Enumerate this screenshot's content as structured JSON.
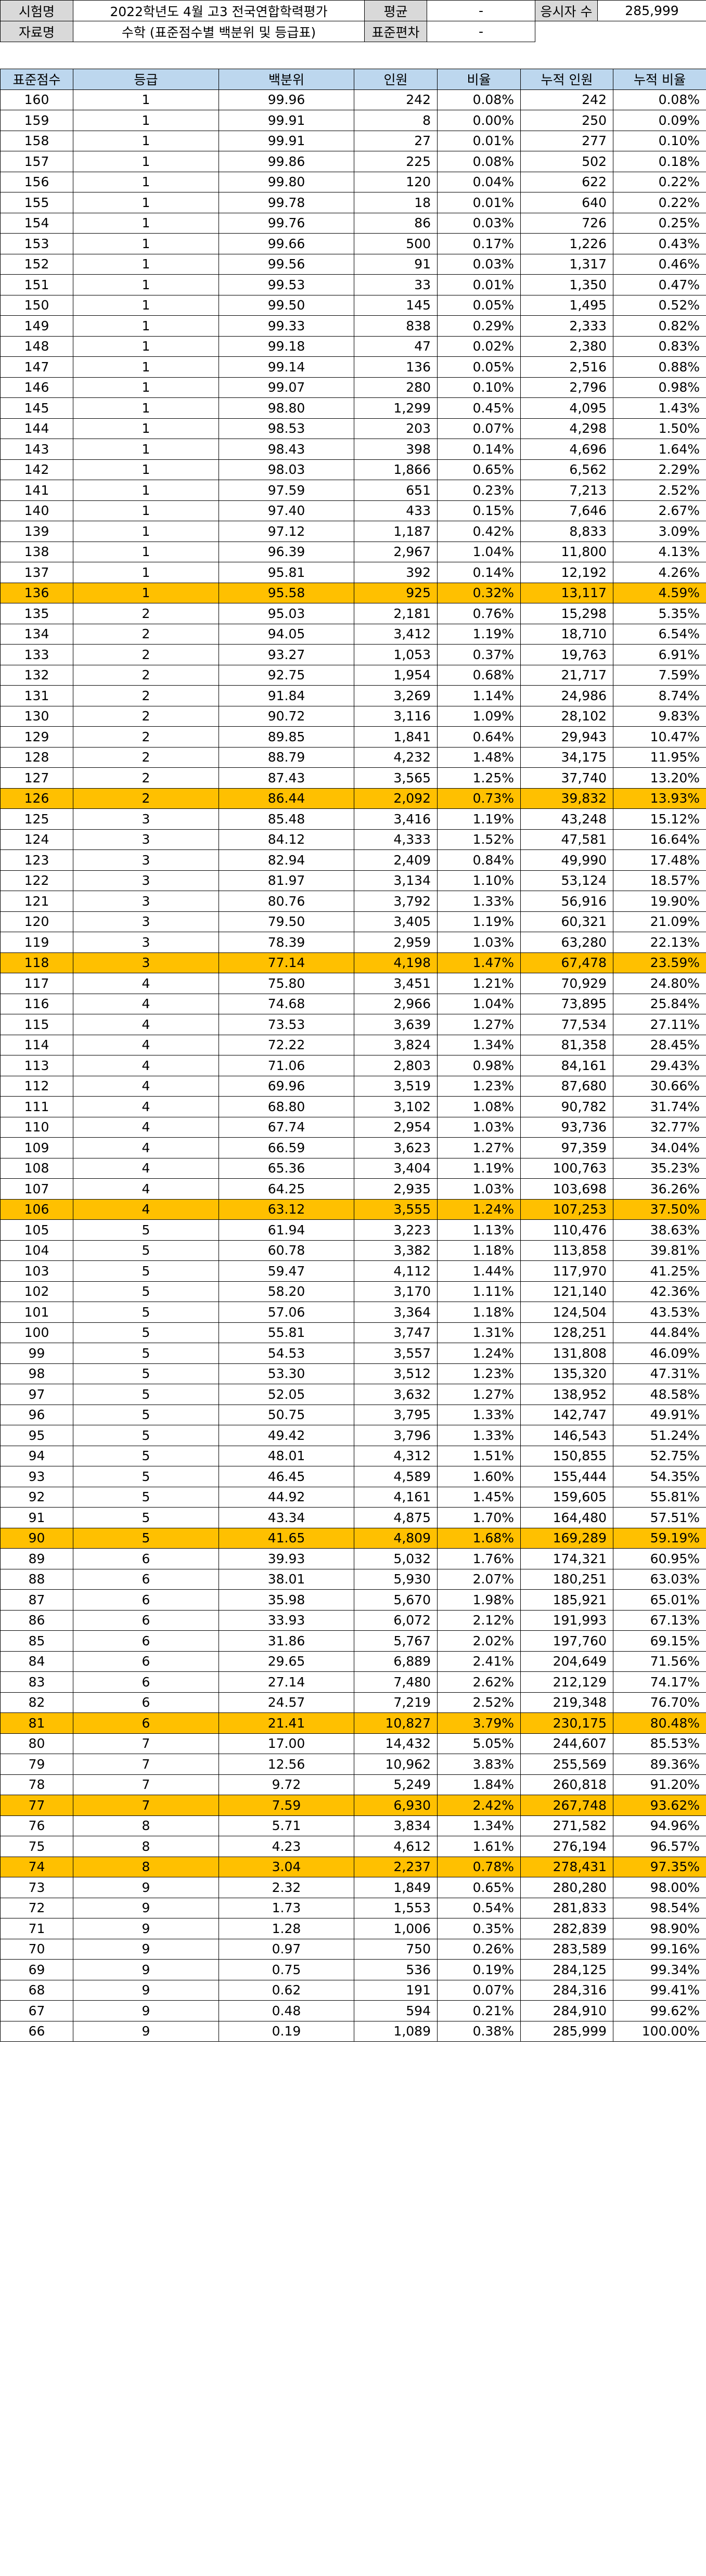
{
  "info": {
    "exam_label": "시험명",
    "exam_name": "2022학년도 4월 고3 전국연합학력평가",
    "mean_label": "평균",
    "mean_value": "-",
    "examinees_label": "응시자 수",
    "examinees_value": "285,999",
    "material_label": "자료명",
    "material_name": "수학 (표준점수별 백분위 및 등급표)",
    "sd_label": "표준편차",
    "sd_value": "-"
  },
  "table": {
    "headers": [
      "표준점수",
      "등급",
      "백분위",
      "인원",
      "비율",
      "누적 인원",
      "누적 비율"
    ],
    "rows": [
      [
        "160",
        "1",
        "99.96",
        "242",
        "0.08%",
        "242",
        "0.08%"
      ],
      [
        "159",
        "1",
        "99.91",
        "8",
        "0.00%",
        "250",
        "0.09%"
      ],
      [
        "158",
        "1",
        "99.91",
        "27",
        "0.01%",
        "277",
        "0.10%"
      ],
      [
        "157",
        "1",
        "99.86",
        "225",
        "0.08%",
        "502",
        "0.18%"
      ],
      [
        "156",
        "1",
        "99.80",
        "120",
        "0.04%",
        "622",
        "0.22%"
      ],
      [
        "155",
        "1",
        "99.78",
        "18",
        "0.01%",
        "640",
        "0.22%"
      ],
      [
        "154",
        "1",
        "99.76",
        "86",
        "0.03%",
        "726",
        "0.25%"
      ],
      [
        "153",
        "1",
        "99.66",
        "500",
        "0.17%",
        "1,226",
        "0.43%"
      ],
      [
        "152",
        "1",
        "99.56",
        "91",
        "0.03%",
        "1,317",
        "0.46%"
      ],
      [
        "151",
        "1",
        "99.53",
        "33",
        "0.01%",
        "1,350",
        "0.47%"
      ],
      [
        "150",
        "1",
        "99.50",
        "145",
        "0.05%",
        "1,495",
        "0.52%"
      ],
      [
        "149",
        "1",
        "99.33",
        "838",
        "0.29%",
        "2,333",
        "0.82%"
      ],
      [
        "148",
        "1",
        "99.18",
        "47",
        "0.02%",
        "2,380",
        "0.83%"
      ],
      [
        "147",
        "1",
        "99.14",
        "136",
        "0.05%",
        "2,516",
        "0.88%"
      ],
      [
        "146",
        "1",
        "99.07",
        "280",
        "0.10%",
        "2,796",
        "0.98%"
      ],
      [
        "145",
        "1",
        "98.80",
        "1,299",
        "0.45%",
        "4,095",
        "1.43%"
      ],
      [
        "144",
        "1",
        "98.53",
        "203",
        "0.07%",
        "4,298",
        "1.50%"
      ],
      [
        "143",
        "1",
        "98.43",
        "398",
        "0.14%",
        "4,696",
        "1.64%"
      ],
      [
        "142",
        "1",
        "98.03",
        "1,866",
        "0.65%",
        "6,562",
        "2.29%"
      ],
      [
        "141",
        "1",
        "97.59",
        "651",
        "0.23%",
        "7,213",
        "2.52%"
      ],
      [
        "140",
        "1",
        "97.40",
        "433",
        "0.15%",
        "7,646",
        "2.67%"
      ],
      [
        "139",
        "1",
        "97.12",
        "1,187",
        "0.42%",
        "8,833",
        "3.09%"
      ],
      [
        "138",
        "1",
        "96.39",
        "2,967",
        "1.04%",
        "11,800",
        "4.13%"
      ],
      [
        "137",
        "1",
        "95.81",
        "392",
        "0.14%",
        "12,192",
        "4.26%"
      ],
      [
        "136",
        "1",
        "95.58",
        "925",
        "0.32%",
        "13,117",
        "4.59%"
      ],
      [
        "135",
        "2",
        "95.03",
        "2,181",
        "0.76%",
        "15,298",
        "5.35%"
      ],
      [
        "134",
        "2",
        "94.05",
        "3,412",
        "1.19%",
        "18,710",
        "6.54%"
      ],
      [
        "133",
        "2",
        "93.27",
        "1,053",
        "0.37%",
        "19,763",
        "6.91%"
      ],
      [
        "132",
        "2",
        "92.75",
        "1,954",
        "0.68%",
        "21,717",
        "7.59%"
      ],
      [
        "131",
        "2",
        "91.84",
        "3,269",
        "1.14%",
        "24,986",
        "8.74%"
      ],
      [
        "130",
        "2",
        "90.72",
        "3,116",
        "1.09%",
        "28,102",
        "9.83%"
      ],
      [
        "129",
        "2",
        "89.85",
        "1,841",
        "0.64%",
        "29,943",
        "10.47%"
      ],
      [
        "128",
        "2",
        "88.79",
        "4,232",
        "1.48%",
        "34,175",
        "11.95%"
      ],
      [
        "127",
        "2",
        "87.43",
        "3,565",
        "1.25%",
        "37,740",
        "13.20%"
      ],
      [
        "126",
        "2",
        "86.44",
        "2,092",
        "0.73%",
        "39,832",
        "13.93%"
      ],
      [
        "125",
        "3",
        "85.48",
        "3,416",
        "1.19%",
        "43,248",
        "15.12%"
      ],
      [
        "124",
        "3",
        "84.12",
        "4,333",
        "1.52%",
        "47,581",
        "16.64%"
      ],
      [
        "123",
        "3",
        "82.94",
        "2,409",
        "0.84%",
        "49,990",
        "17.48%"
      ],
      [
        "122",
        "3",
        "81.97",
        "3,134",
        "1.10%",
        "53,124",
        "18.57%"
      ],
      [
        "121",
        "3",
        "80.76",
        "3,792",
        "1.33%",
        "56,916",
        "19.90%"
      ],
      [
        "120",
        "3",
        "79.50",
        "3,405",
        "1.19%",
        "60,321",
        "21.09%"
      ],
      [
        "119",
        "3",
        "78.39",
        "2,959",
        "1.03%",
        "63,280",
        "22.13%"
      ],
      [
        "118",
        "3",
        "77.14",
        "4,198",
        "1.47%",
        "67,478",
        "23.59%"
      ],
      [
        "117",
        "4",
        "75.80",
        "3,451",
        "1.21%",
        "70,929",
        "24.80%"
      ],
      [
        "116",
        "4",
        "74.68",
        "2,966",
        "1.04%",
        "73,895",
        "25.84%"
      ],
      [
        "115",
        "4",
        "73.53",
        "3,639",
        "1.27%",
        "77,534",
        "27.11%"
      ],
      [
        "114",
        "4",
        "72.22",
        "3,824",
        "1.34%",
        "81,358",
        "28.45%"
      ],
      [
        "113",
        "4",
        "71.06",
        "2,803",
        "0.98%",
        "84,161",
        "29.43%"
      ],
      [
        "112",
        "4",
        "69.96",
        "3,519",
        "1.23%",
        "87,680",
        "30.66%"
      ],
      [
        "111",
        "4",
        "68.80",
        "3,102",
        "1.08%",
        "90,782",
        "31.74%"
      ],
      [
        "110",
        "4",
        "67.74",
        "2,954",
        "1.03%",
        "93,736",
        "32.77%"
      ],
      [
        "109",
        "4",
        "66.59",
        "3,623",
        "1.27%",
        "97,359",
        "34.04%"
      ],
      [
        "108",
        "4",
        "65.36",
        "3,404",
        "1.19%",
        "100,763",
        "35.23%"
      ],
      [
        "107",
        "4",
        "64.25",
        "2,935",
        "1.03%",
        "103,698",
        "36.26%"
      ],
      [
        "106",
        "4",
        "63.12",
        "3,555",
        "1.24%",
        "107,253",
        "37.50%"
      ],
      [
        "105",
        "5",
        "61.94",
        "3,223",
        "1.13%",
        "110,476",
        "38.63%"
      ],
      [
        "104",
        "5",
        "60.78",
        "3,382",
        "1.18%",
        "113,858",
        "39.81%"
      ],
      [
        "103",
        "5",
        "59.47",
        "4,112",
        "1.44%",
        "117,970",
        "41.25%"
      ],
      [
        "102",
        "5",
        "58.20",
        "3,170",
        "1.11%",
        "121,140",
        "42.36%"
      ],
      [
        "101",
        "5",
        "57.06",
        "3,364",
        "1.18%",
        "124,504",
        "43.53%"
      ],
      [
        "100",
        "5",
        "55.81",
        "3,747",
        "1.31%",
        "128,251",
        "44.84%"
      ],
      [
        "99",
        "5",
        "54.53",
        "3,557",
        "1.24%",
        "131,808",
        "46.09%"
      ],
      [
        "98",
        "5",
        "53.30",
        "3,512",
        "1.23%",
        "135,320",
        "47.31%"
      ],
      [
        "97",
        "5",
        "52.05",
        "3,632",
        "1.27%",
        "138,952",
        "48.58%"
      ],
      [
        "96",
        "5",
        "50.75",
        "3,795",
        "1.33%",
        "142,747",
        "49.91%"
      ],
      [
        "95",
        "5",
        "49.42",
        "3,796",
        "1.33%",
        "146,543",
        "51.24%"
      ],
      [
        "94",
        "5",
        "48.01",
        "4,312",
        "1.51%",
        "150,855",
        "52.75%"
      ],
      [
        "93",
        "5",
        "46.45",
        "4,589",
        "1.60%",
        "155,444",
        "54.35%"
      ],
      [
        "92",
        "5",
        "44.92",
        "4,161",
        "1.45%",
        "159,605",
        "55.81%"
      ],
      [
        "91",
        "5",
        "43.34",
        "4,875",
        "1.70%",
        "164,480",
        "57.51%"
      ],
      [
        "90",
        "5",
        "41.65",
        "4,809",
        "1.68%",
        "169,289",
        "59.19%"
      ],
      [
        "89",
        "6",
        "39.93",
        "5,032",
        "1.76%",
        "174,321",
        "60.95%"
      ],
      [
        "88",
        "6",
        "38.01",
        "5,930",
        "2.07%",
        "180,251",
        "63.03%"
      ],
      [
        "87",
        "6",
        "35.98",
        "5,670",
        "1.98%",
        "185,921",
        "65.01%"
      ],
      [
        "86",
        "6",
        "33.93",
        "6,072",
        "2.12%",
        "191,993",
        "67.13%"
      ],
      [
        "85",
        "6",
        "31.86",
        "5,767",
        "2.02%",
        "197,760",
        "69.15%"
      ],
      [
        "84",
        "6",
        "29.65",
        "6,889",
        "2.41%",
        "204,649",
        "71.56%"
      ],
      [
        "83",
        "6",
        "27.14",
        "7,480",
        "2.62%",
        "212,129",
        "74.17%"
      ],
      [
        "82",
        "6",
        "24.57",
        "7,219",
        "2.52%",
        "219,348",
        "76.70%"
      ],
      [
        "81",
        "6",
        "21.41",
        "10,827",
        "3.79%",
        "230,175",
        "80.48%"
      ],
      [
        "80",
        "7",
        "17.00",
        "14,432",
        "5.05%",
        "244,607",
        "85.53%"
      ],
      [
        "79",
        "7",
        "12.56",
        "10,962",
        "3.83%",
        "255,569",
        "89.36%"
      ],
      [
        "78",
        "7",
        "9.72",
        "5,249",
        "1.84%",
        "260,818",
        "91.20%"
      ],
      [
        "77",
        "7",
        "7.59",
        "6,930",
        "2.42%",
        "267,748",
        "93.62%"
      ],
      [
        "76",
        "8",
        "5.71",
        "3,834",
        "1.34%",
        "271,582",
        "94.96%"
      ],
      [
        "75",
        "8",
        "4.23",
        "4,612",
        "1.61%",
        "276,194",
        "96.57%"
      ],
      [
        "74",
        "8",
        "3.04",
        "2,237",
        "0.78%",
        "278,431",
        "97.35%"
      ],
      [
        "73",
        "9",
        "2.32",
        "1,849",
        "0.65%",
        "280,280",
        "98.00%"
      ],
      [
        "72",
        "9",
        "1.73",
        "1,553",
        "0.54%",
        "281,833",
        "98.54%"
      ],
      [
        "71",
        "9",
        "1.28",
        "1,006",
        "0.35%",
        "282,839",
        "98.90%"
      ],
      [
        "70",
        "9",
        "0.97",
        "750",
        "0.26%",
        "283,589",
        "99.16%"
      ],
      [
        "69",
        "9",
        "0.75",
        "536",
        "0.19%",
        "284,125",
        "99.34%"
      ],
      [
        "68",
        "9",
        "0.62",
        "191",
        "0.07%",
        "284,316",
        "99.41%"
      ],
      [
        "67",
        "9",
        "0.48",
        "594",
        "0.21%",
        "284,910",
        "99.62%"
      ],
      [
        "66",
        "9",
        "0.19",
        "1,089",
        "0.38%",
        "285,999",
        "100.00%"
      ]
    ],
    "highlight_scores": [
      "136",
      "126",
      "118",
      "106",
      "90",
      "81",
      "77",
      "74"
    ],
    "colors": {
      "header_bg": "#bdd7ee",
      "highlight_bg": "#ffc000",
      "label_bg": "#d9d9d9"
    }
  }
}
